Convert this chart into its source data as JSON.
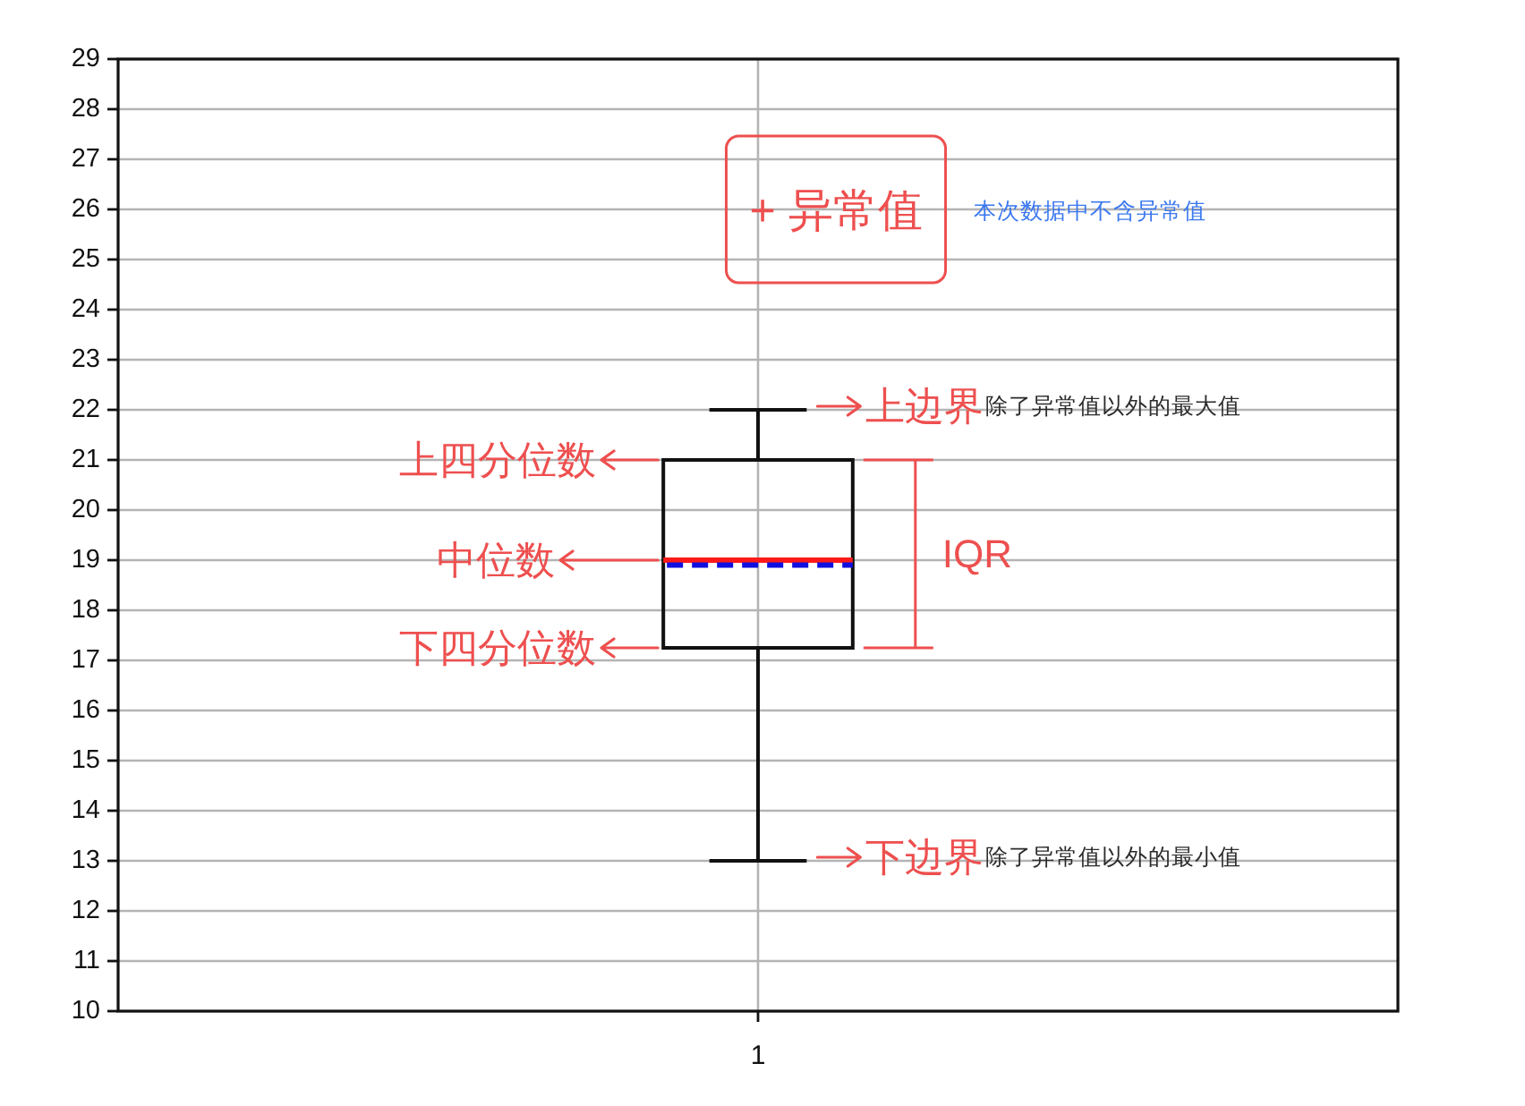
{
  "chart_data": {
    "type": "box",
    "categories": [
      "1"
    ],
    "boxes": [
      {
        "low": 13,
        "q1": 17.25,
        "median": 19,
        "q3": 21,
        "high": 22,
        "mean": 18.9
      }
    ],
    "ylim": [
      10,
      29
    ],
    "yticks": [
      10,
      11,
      12,
      13,
      14,
      15,
      16,
      17,
      18,
      19,
      20,
      21,
      22,
      23,
      24,
      25,
      26,
      27,
      28,
      29
    ],
    "grid": true,
    "annotations": [
      "+ 异常值",
      "本次数据中不含异常值",
      {
        "text": "上边界",
        "x": "1",
        "y": 22
      },
      "除了异常值以外的最大值",
      "上四分位数",
      "中位数",
      "IQR",
      "下四分位数",
      {
        "text": "下边界",
        "x": "1",
        "y": 13
      },
      "除了异常值以外的最小值"
    ]
  }
}
